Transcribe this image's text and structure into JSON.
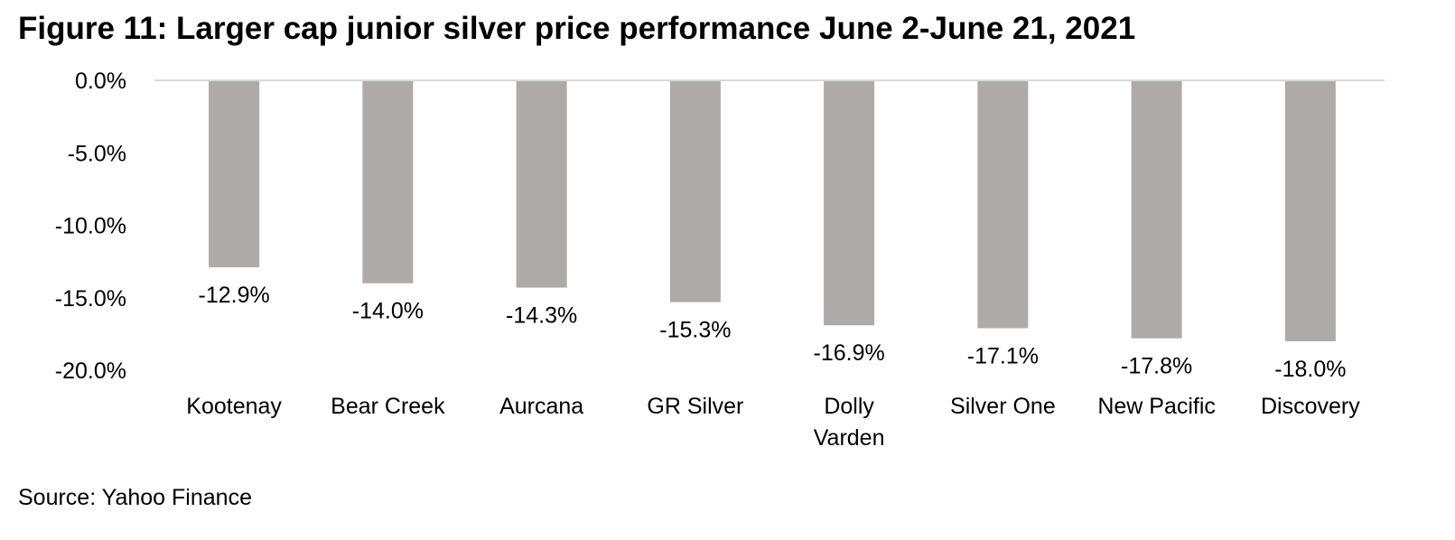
{
  "chart_data": {
    "type": "bar",
    "title": "Figure 11: Larger cap junior silver price performance June 2-June 21, 2021",
    "categories": [
      "Kootenay",
      "Bear Creek",
      "Aurcana",
      "GR Silver",
      "Dolly Varden",
      "Silver One",
      "New Pacific",
      "Discovery"
    ],
    "values": [
      -12.9,
      -14.0,
      -14.3,
      -15.3,
      -16.9,
      -17.1,
      -17.8,
      -18.0
    ],
    "data_labels": [
      "-12.9%",
      "-14.0%",
      "-14.3%",
      "-15.3%",
      "-16.9%",
      "-17.1%",
      "-17.8%",
      "-18.0%"
    ],
    "xlabel": "",
    "ylabel": "",
    "ylim": [
      -20,
      0
    ],
    "yticks": [
      0,
      -5,
      -10,
      -15,
      -20
    ],
    "ytick_labels": [
      "0.0%",
      "-5.0%",
      "-10.0%",
      "-15.0%",
      "-20.0%"
    ],
    "grid": false,
    "bar_color": "#AEAAAA",
    "axis_color": "#D9D9D9",
    "source": "Source: Yahoo Finance"
  }
}
